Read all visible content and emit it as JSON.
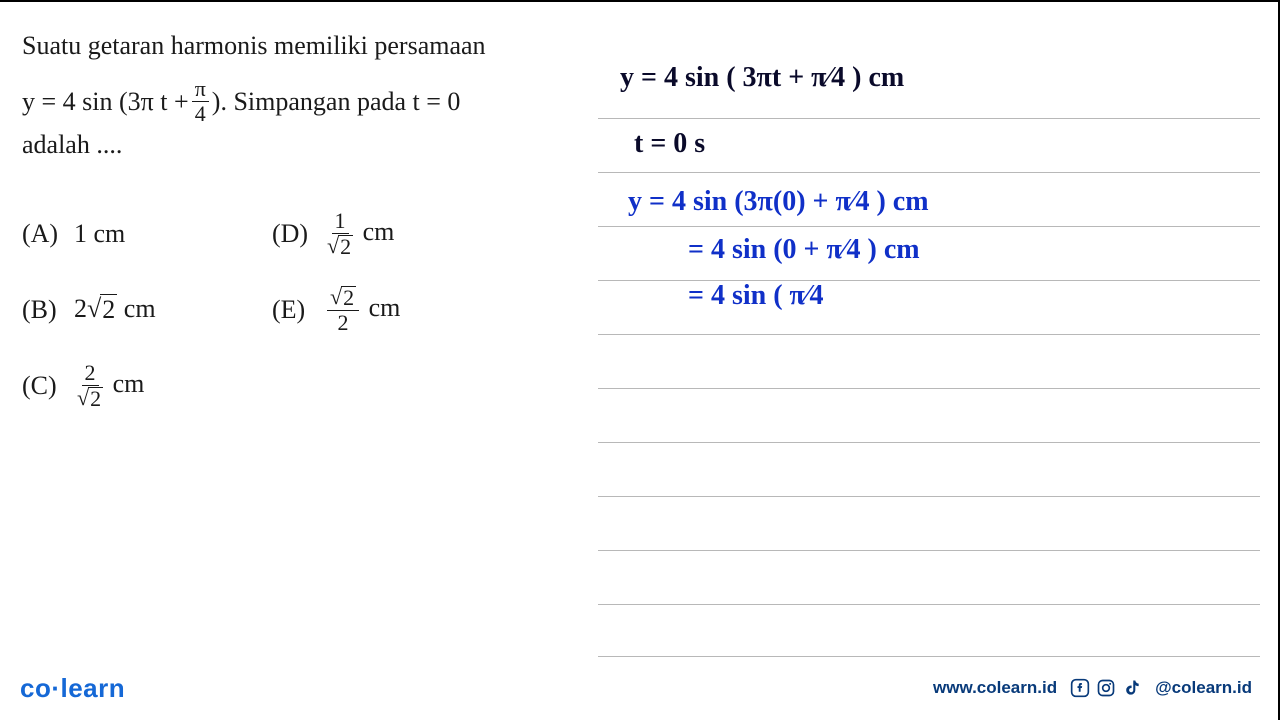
{
  "question": {
    "line1": "Suatu getaran harmonis memiliki persamaan",
    "eq_pre": "y = 4 sin (3π t + ",
    "eq_frac_num": "π",
    "eq_frac_den": "4",
    "eq_post": "). Simpangan pada t = 0",
    "line3": "adalah ...."
  },
  "options": {
    "A": {
      "label": "(A)",
      "text": "1 cm"
    },
    "B": {
      "label": "(B)",
      "pre": "2",
      "sqrt": "2",
      "post": " cm"
    },
    "C": {
      "label": "(C)",
      "num": "2",
      "den_sqrt": "2",
      "unit": "cm"
    },
    "D": {
      "label": "(D)",
      "num": "1",
      "den_sqrt": "2",
      "unit": "cm"
    },
    "E": {
      "label": "(E)",
      "num_sqrt": "2",
      "den": "2",
      "unit": "cm"
    }
  },
  "handwriting": {
    "h1": "y = 4 sin ( 3πt + π⁄4 ) cm",
    "h2": "t = 0 s",
    "h3": "y = 4 sin (3π(0) + π⁄4 ) cm",
    "h4": "= 4 sin (0 + π⁄4 ) cm",
    "h5": "= 4 sin  ( π⁄4"
  },
  "ruled_lines_y": [
    116,
    170,
    224,
    278,
    332,
    386,
    440,
    494,
    548,
    602,
    654
  ],
  "footer": {
    "logo": "co·learn",
    "url": "www.colearn.id",
    "handle": "@colearn.id"
  },
  "colors": {
    "text": "#1a1a1a",
    "hand_black": "#0a0a2a",
    "hand_blue": "#1030c8",
    "rule": "#b8b8b8",
    "brand": "#1568d6",
    "footer_text": "#083a7a"
  },
  "typography": {
    "question_fontsize": 26,
    "hand_fontsize": 28,
    "logo_fontsize": 26,
    "footer_fontsize": 17
  }
}
